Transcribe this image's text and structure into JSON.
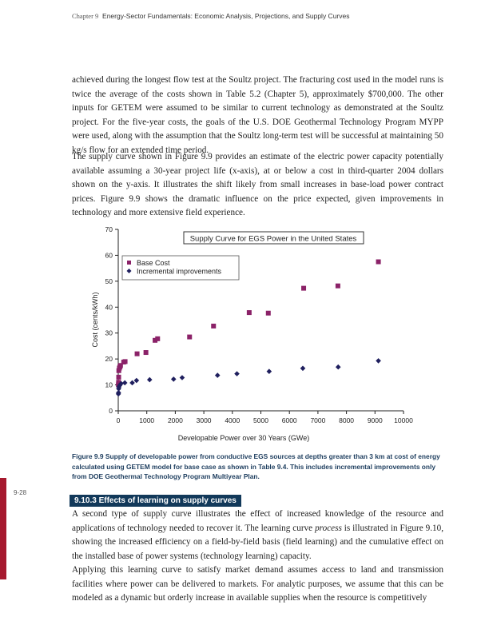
{
  "header": {
    "chapter": "Chapter 9",
    "title": "Energy-Sector Fundamentals: Economic Analysis, Projections, and Supply Curves"
  },
  "paragraphs": [
    "achieved during the longest flow test at the Soultz project. The fracturing cost used in the model runs is twice the average of the costs shown in Table 5.2 (Chapter 5), approximately $700,000. The other inputs for GETEM were assumed to be similar to current technology as demonstrated at the Soultz project. For the five-year costs, the goals of the U.S. DOE Geothermal Technology Program MYPP were used, along with the assumption that the Soultz long-term test will be successful at maintaining 50 kg/s flow for an extended time period.",
    "The supply curve shown in Figure 9.9 provides an estimate of the electric power capacity potentially available assuming a 30-year project life (x-axis), at or below a cost in third-quarter 2004 dollars shown on the y-axis. It illustrates the shift likely from small increases in base-load power contract prices. Figure 9.9 shows the dramatic influence on the price expected, given improvements in technology and more extensive field experience."
  ],
  "chart_data": {
    "type": "scatter",
    "title": "Supply Curve for EGS Power in the United States",
    "xlabel": "Developable Power over 30 Years (GWe)",
    "ylabel": "Cost (cents/kWh)",
    "xlim": [
      0,
      10000
    ],
    "ylim": [
      0,
      70
    ],
    "xticks": [
      "0",
      "1000",
      "2000",
      "3000",
      "4000",
      "5000",
      "6000",
      "7000",
      "8000",
      "9000",
      "10000"
    ],
    "yticks": [
      "0",
      "10",
      "20",
      "30",
      "40",
      "50",
      "60",
      "70"
    ],
    "grid": false,
    "legend_position": "top-left",
    "series": [
      {
        "name": "Base Cost",
        "marker": "square",
        "color": "#8b2268",
        "x": [
          5,
          10,
          15,
          20,
          40,
          60,
          80,
          190,
          240,
          660,
          970,
          1290,
          1380,
          2500,
          3340,
          4590,
          5260,
          6500,
          7700,
          9120
        ],
        "y": [
          10,
          11,
          13,
          15.5,
          16.5,
          17,
          17.5,
          18.8,
          19,
          22,
          22.5,
          27.2,
          27.8,
          28.5,
          32.7,
          37.9,
          37.7,
          47.3,
          48.2,
          57.5
        ]
      },
      {
        "name": "Incremental improvements",
        "marker": "diamond",
        "color": "#1f1f5e",
        "x": [
          5,
          10,
          15,
          25,
          50,
          100,
          230,
          490,
          640,
          1100,
          1940,
          2240,
          3480,
          4160,
          5290,
          6470,
          7710,
          9120
        ],
        "y": [
          6.5,
          7,
          8.5,
          9.2,
          9.8,
          10.5,
          10.8,
          10.8,
          11.7,
          12,
          12.2,
          12.8,
          13.7,
          14.3,
          15.2,
          16.4,
          16.9,
          19.3
        ]
      }
    ]
  },
  "caption": "Figure 9.9 Supply of developable power from conductive EGS sources at depths greater than 3 km at cost of energy calculated using GETEM model for base case as shown in Table 9.4. This includes incremental improvements only from DOE Geothermal Technology Program Multiyear Plan.",
  "page_number": "9-28",
  "section_heading": "9.10.3  Effects of learning on supply curves",
  "section_paragraphs": {
    "p1_a": "A second type of supply curve illustrates the effect of increased knowledge of the resource and applications of technology needed to recover it. The learning curve ",
    "p1_em": "process",
    "p1_b": " is illustrated in Figure 9.10, showing the increased efficiency on a field-by-field basis (field learning) and the cumulative effect on the installed base of power systems (technology learning) capacity.",
    "p2": "Applying this learning curve to satisfy market demand assumes access to land and transmission facilities where power can be delivered to markets. For analytic purposes, we assume that this can be modeled as a dynamic but orderly increase in available supplies when the resource is competitively"
  }
}
